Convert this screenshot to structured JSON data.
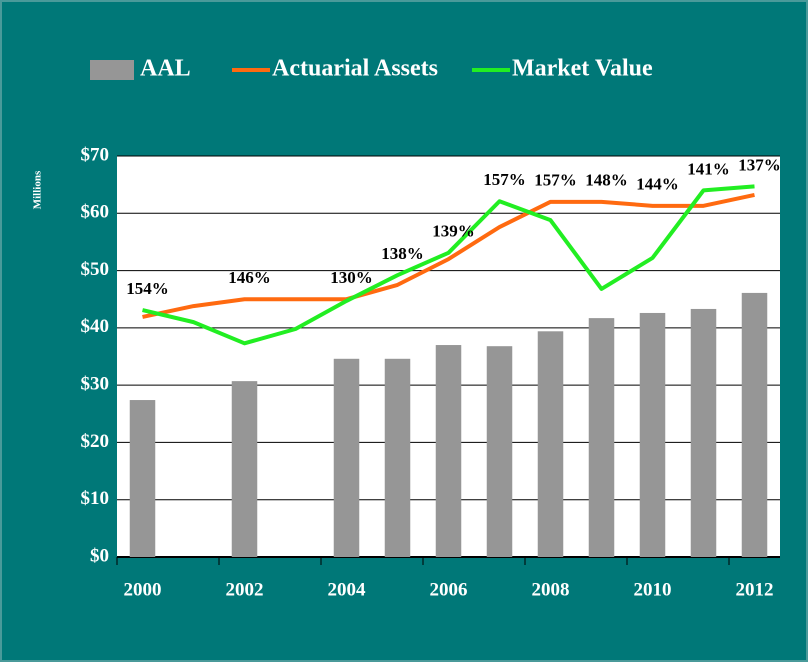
{
  "chart_data": {
    "type": "bar_line",
    "y_axis_label": "Millions",
    "categories": [
      "2000",
      null,
      "2002",
      null,
      "2004",
      null,
      "2006",
      null,
      "2008",
      null,
      "2010",
      null,
      "2012"
    ],
    "series": [
      {
        "name": "AAL",
        "type": "bar",
        "color": "#969696",
        "values": [
          27.4,
          null,
          30.7,
          null,
          34.6,
          34.6,
          37.0,
          36.8,
          39.4,
          41.7,
          42.6,
          43.3,
          46.1
        ]
      },
      {
        "name": "Actuarial Assets",
        "type": "line",
        "color": "#ff6a10",
        "values": [
          41.9,
          43.8,
          45.0,
          45.0,
          45.0,
          47.5,
          52.0,
          57.6,
          62.0,
          62.0,
          61.3,
          61.3,
          63.2
        ]
      },
      {
        "name": "Market Value",
        "type": "line",
        "color": "#22ee22",
        "values": [
          43.1,
          41.0,
          37.3,
          39.8,
          44.7,
          49.2,
          53.1,
          62.1,
          58.8,
          46.8,
          52.2,
          64.0,
          64.7
        ]
      }
    ],
    "annotations": [
      "154%",
      null,
      "146%",
      null,
      "130%",
      "138%",
      "139%",
      "157%",
      "157%",
      "148%",
      "144%",
      "141%",
      "137%"
    ],
    "ylim": [
      0,
      70
    ],
    "yticks": [
      {
        "value": 0,
        "label": "$0"
      },
      {
        "value": 10,
        "label": "$10"
      },
      {
        "value": 20,
        "label": "$20"
      },
      {
        "value": 30,
        "label": "$30"
      },
      {
        "value": 40,
        "label": "$40"
      },
      {
        "value": 50,
        "label": "$50"
      },
      {
        "value": 60,
        "label": "$60"
      },
      {
        "value": 70,
        "label": "$70"
      }
    ],
    "grid": true,
    "legend": "top"
  }
}
